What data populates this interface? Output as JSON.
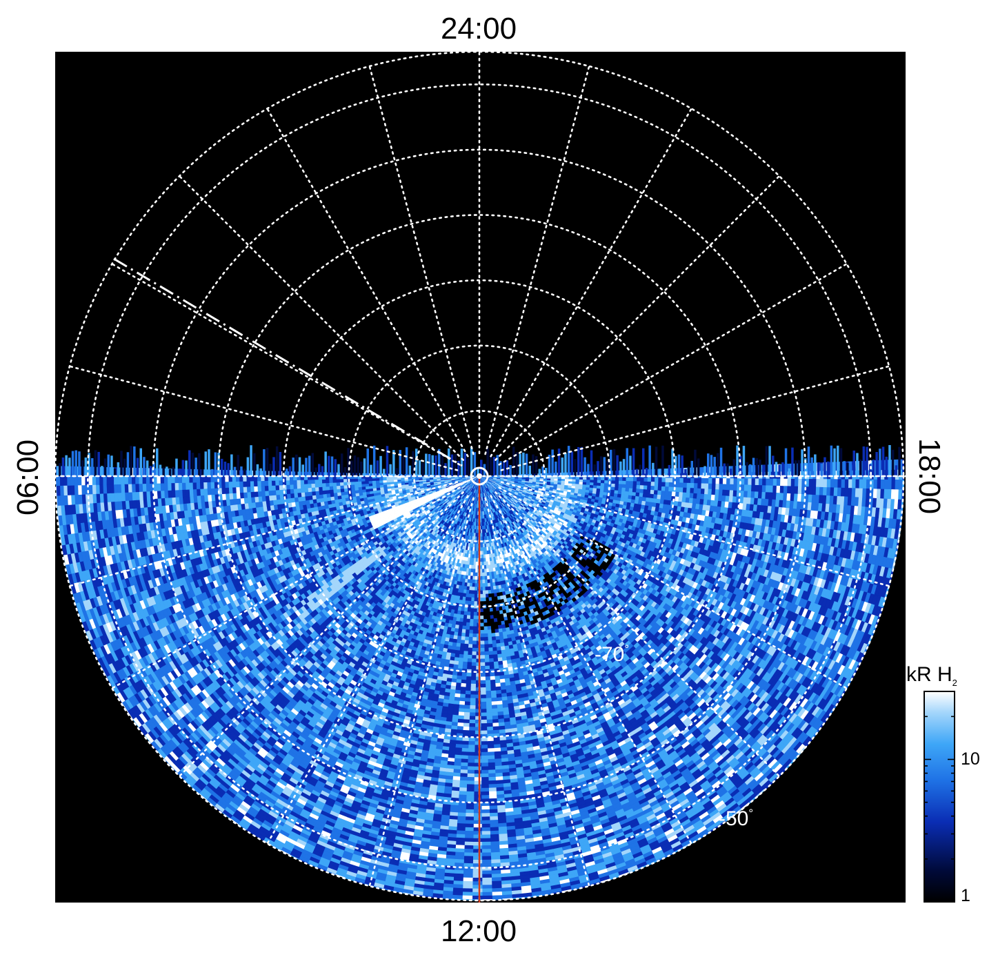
{
  "chart_data": {
    "type": "heatmap",
    "projection": "polar (south pole view, local time vs latitude)",
    "local_time_labels": {
      "top": "24:00",
      "left": "06:00",
      "right": "18:00",
      "bottom": "12:00"
    },
    "latitude_labels": [
      {
        "text": "-70",
        "degree_sign": "°",
        "latitude": -70
      },
      {
        "text": "-50",
        "degree_sign": "°",
        "latitude": -50
      }
    ],
    "grid": {
      "latitude_circles": [
        -80,
        -70,
        -60,
        -50,
        -40,
        -30
      ],
      "outer_latitude": -25,
      "meridian_step_hours": 1,
      "style": "white dotted"
    },
    "coverage": "lower hemisphere of the plot (local time 06:00 through 12:00 to 18:00)",
    "colorbar": {
      "title": "kR H",
      "title_subscript": "2",
      "scale": "log",
      "range": [
        1,
        30
      ],
      "ticks": [
        {
          "value": 1,
          "label": "1"
        },
        {
          "value": 10,
          "label": "10"
        }
      ],
      "colors": [
        "#000000",
        "#000a3a",
        "#0a2db4",
        "#1f73e6",
        "#3ea6f7",
        "#a4d6fb",
        "#ffffff"
      ]
    },
    "features": {
      "bright_arc_local_time": "07:30",
      "auroral_oval_latitude": -77,
      "noon_meridian_line_color": "#d03a1a",
      "dashed_line_local_time": "04:00"
    }
  }
}
